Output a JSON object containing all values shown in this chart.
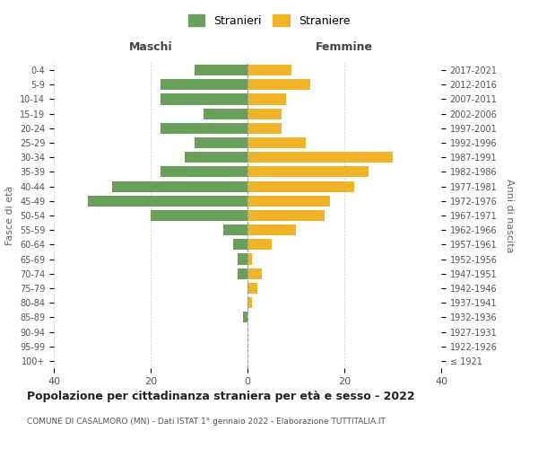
{
  "age_groups": [
    "100+",
    "95-99",
    "90-94",
    "85-89",
    "80-84",
    "75-79",
    "70-74",
    "65-69",
    "60-64",
    "55-59",
    "50-54",
    "45-49",
    "40-44",
    "35-39",
    "30-34",
    "25-29",
    "20-24",
    "15-19",
    "10-14",
    "5-9",
    "0-4"
  ],
  "birth_years": [
    "≤ 1921",
    "1922-1926",
    "1927-1931",
    "1932-1936",
    "1937-1941",
    "1942-1946",
    "1947-1951",
    "1952-1956",
    "1957-1961",
    "1962-1966",
    "1967-1971",
    "1972-1976",
    "1977-1981",
    "1982-1986",
    "1987-1991",
    "1992-1996",
    "1997-2001",
    "2002-2006",
    "2007-2011",
    "2012-2016",
    "2017-2021"
  ],
  "maschi": [
    0,
    0,
    0,
    1,
    0,
    0,
    2,
    2,
    3,
    5,
    20,
    33,
    28,
    18,
    13,
    11,
    18,
    9,
    18,
    18,
    11
  ],
  "femmine": [
    0,
    0,
    0,
    0,
    1,
    2,
    3,
    1,
    5,
    10,
    16,
    17,
    22,
    25,
    30,
    12,
    7,
    7,
    8,
    13,
    9
  ],
  "maschi_color": "#6a9e5b",
  "femmine_color": "#f0b429",
  "bg_color": "#ffffff",
  "grid_color": "#cccccc",
  "title": "Popolazione per cittadinanza straniera per età e sesso - 2022",
  "subtitle": "COMUNE DI CASALMORO (MN) - Dati ISTAT 1° gennaio 2022 - Elaborazione TUTTITALIA.IT",
  "xlabel_left": "Maschi",
  "xlabel_right": "Femmine",
  "ylabel_left": "Fasce di età",
  "ylabel_right": "Anni di nascita",
  "legend_maschi": "Stranieri",
  "legend_femmine": "Straniere",
  "xlim": 40
}
